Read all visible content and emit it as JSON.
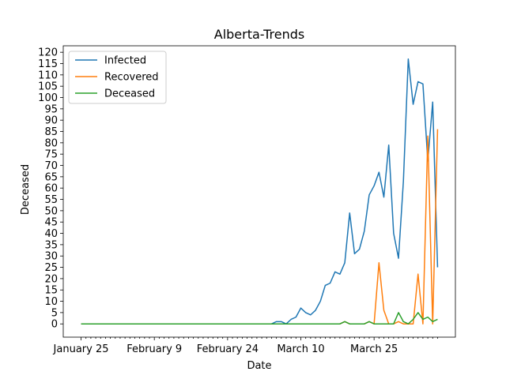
{
  "chart_data": {
    "type": "line",
    "title": "Alberta-Trends",
    "x_label": "Date",
    "y_label": "Deceased",
    "categories": [
      "January 25",
      null,
      null,
      null,
      null,
      null,
      null,
      null,
      null,
      null,
      null,
      null,
      null,
      null,
      null,
      "February 9",
      null,
      null,
      null,
      null,
      null,
      null,
      null,
      null,
      null,
      null,
      null,
      null,
      null,
      null,
      "February 24",
      null,
      null,
      null,
      null,
      null,
      null,
      null,
      null,
      null,
      null,
      null,
      null,
      null,
      null,
      "March 10",
      null,
      null,
      null,
      null,
      null,
      null,
      null,
      null,
      null,
      null,
      null,
      null,
      null,
      null,
      "March 25",
      null,
      null,
      null,
      null,
      null,
      null,
      null,
      null,
      null,
      null,
      null,
      null,
      null
    ],
    "series": [
      {
        "name": "Infected",
        "color": "#1f77b4",
        "values": [
          0,
          0,
          0,
          0,
          0,
          0,
          0,
          0,
          0,
          0,
          0,
          0,
          0,
          0,
          0,
          0,
          0,
          0,
          0,
          0,
          0,
          0,
          0,
          0,
          0,
          0,
          0,
          0,
          0,
          0,
          0,
          0,
          0,
          0,
          0,
          0,
          0,
          0,
          0,
          0,
          1,
          1,
          0,
          2,
          3,
          7,
          5,
          4,
          6,
          10,
          17,
          18,
          23,
          22,
          27,
          49,
          31,
          33,
          41,
          57,
          61,
          67,
          56,
          79,
          40,
          29,
          63,
          117,
          97,
          107,
          106,
          72,
          98,
          25
        ]
      },
      {
        "name": "Recovered",
        "color": "#ff7f0e",
        "values": [
          0,
          0,
          0,
          0,
          0,
          0,
          0,
          0,
          0,
          0,
          0,
          0,
          0,
          0,
          0,
          0,
          0,
          0,
          0,
          0,
          0,
          0,
          0,
          0,
          0,
          0,
          0,
          0,
          0,
          0,
          0,
          0,
          0,
          0,
          0,
          0,
          0,
          0,
          0,
          0,
          0,
          0,
          0,
          0,
          0,
          0,
          0,
          0,
          0,
          0,
          0,
          0,
          0,
          0,
          1,
          0,
          0,
          0,
          0,
          1,
          0,
          27,
          6,
          0,
          0,
          1,
          0,
          0,
          0,
          22,
          0,
          83,
          0,
          86
        ]
      },
      {
        "name": "Deceased",
        "color": "#2ca02c",
        "values": [
          0,
          0,
          0,
          0,
          0,
          0,
          0,
          0,
          0,
          0,
          0,
          0,
          0,
          0,
          0,
          0,
          0,
          0,
          0,
          0,
          0,
          0,
          0,
          0,
          0,
          0,
          0,
          0,
          0,
          0,
          0,
          0,
          0,
          0,
          0,
          0,
          0,
          0,
          0,
          0,
          0,
          0,
          0,
          0,
          0,
          0,
          0,
          0,
          0,
          0,
          0,
          0,
          0,
          0,
          1,
          0,
          0,
          0,
          0,
          1,
          0,
          0,
          0,
          0,
          0,
          5,
          1,
          0,
          2,
          5,
          2,
          3,
          1,
          2
        ]
      }
    ],
    "ylim": [
      -5.85,
      122.85
    ],
    "yticks": [
      0,
      5,
      10,
      15,
      20,
      25,
      30,
      35,
      40,
      45,
      50,
      55,
      60,
      65,
      70,
      75,
      80,
      85,
      90,
      95,
      100,
      105,
      110,
      115,
      120
    ],
    "legend": "upper left",
    "grid": false
  }
}
